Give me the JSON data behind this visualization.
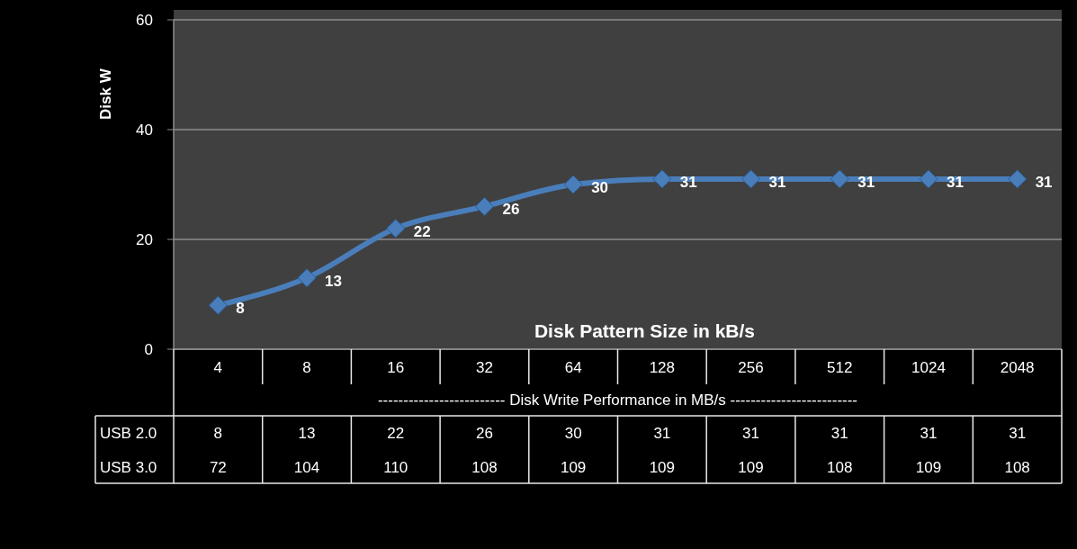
{
  "chart_data": {
    "type": "line",
    "xlabel": "Disk Pattern Size in kB/s",
    "ylabel": "Disk W",
    "categories": [
      "4",
      "8",
      "16",
      "32",
      "64",
      "128",
      "256",
      "512",
      "1024",
      "2048"
    ],
    "series": [
      {
        "color": "#4a7ebb",
        "values": [
          8,
          13,
          22,
          26,
          30,
          31,
          31,
          31,
          31,
          31
        ],
        "value_labels": [
          "8",
          "13",
          "22",
          "26",
          "30",
          "31",
          "31",
          "31",
          "31",
          "31"
        ]
      },
      {
        "name": "USB 2.0",
        "values": [
          null,
          null,
          null,
          null,
          null,
          null,
          null,
          null,
          null,
          null
        ],
        "value_labels": [
          "8",
          "13",
          "22",
          "26",
          "30",
          "31",
          "31",
          "31",
          "31",
          "31"
        ]
      },
      {
        "name": "USB 3.0",
        "values": [
          null,
          null,
          null,
          null,
          null,
          null,
          null,
          null,
          null,
          null
        ],
        "value_labels": [
          "72",
          "104",
          "110",
          "108",
          "109",
          "109",
          "109",
          "108",
          "109",
          "108"
        ]
      }
    ],
    "ylim": [
      0,
      60
    ],
    "yticks": [
      0,
      20,
      40,
      60
    ],
    "grid": "y",
    "marker": "diamond",
    "annotations": [
      "------------------------- Disk Write Performance in MB/s -------------------------"
    ]
  }
}
